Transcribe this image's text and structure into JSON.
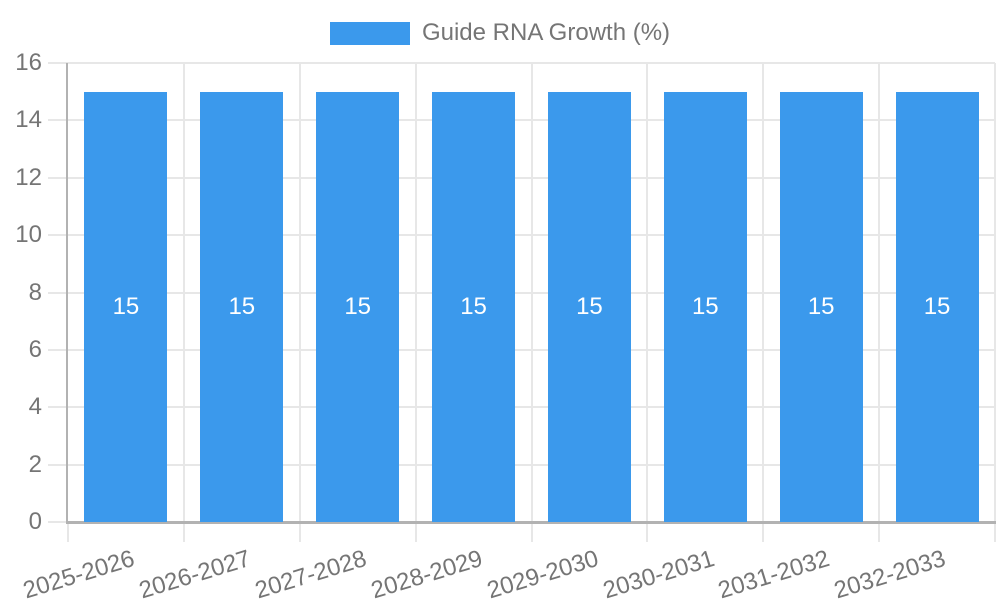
{
  "chart_data": {
    "type": "bar",
    "legend": {
      "label": "Guide RNA Growth (%)",
      "position": "top"
    },
    "categories": [
      "2025-2026",
      "2026-2027",
      "2027-2028",
      "2028-2029",
      "2029-2030",
      "2030-2031",
      "2031-2032",
      "2032-2033"
    ],
    "series": [
      {
        "name": "Guide RNA Growth (%)",
        "color": "#3B99EC",
        "values": [
          15,
          15,
          15,
          15,
          15,
          15,
          15,
          15
        ]
      }
    ],
    "show_bar_labels": true,
    "ylim": [
      0,
      16
    ],
    "yticks": [
      0,
      2,
      4,
      6,
      8,
      10,
      12,
      14,
      16
    ],
    "grid": true,
    "x_label_rotation_deg": -17,
    "colors": {
      "bar": "#3B99EC",
      "axis_text": "#757575",
      "bar_label_text": "#ffffff",
      "gridline": "#e7e7e7",
      "axis_line": "#b2b2b2",
      "background": "#ffffff"
    }
  }
}
